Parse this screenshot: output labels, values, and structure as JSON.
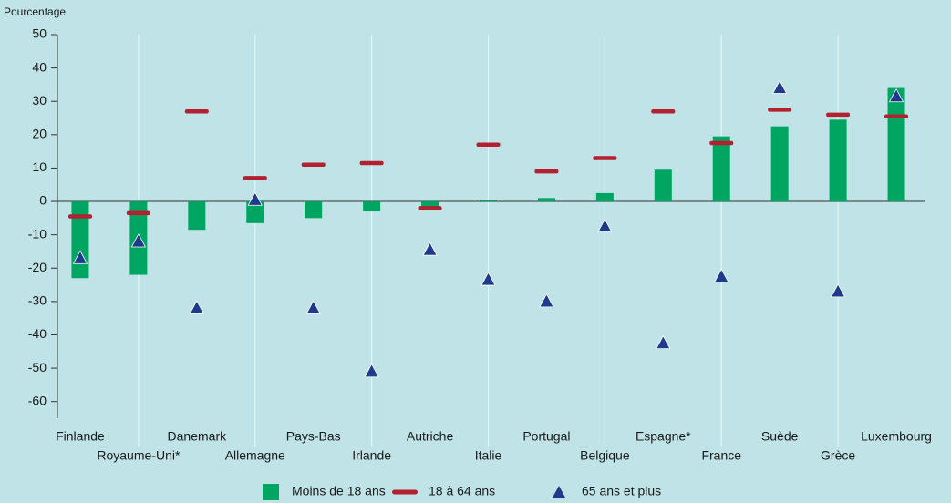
{
  "chart_data": {
    "type": "bar",
    "y_label": "Pourcentage",
    "categories": [
      "Finlande",
      "Royaume-Uni*",
      "Danemark",
      "Allemagne",
      "Pays-Bas",
      "Irlande",
      "Autriche",
      "Italie",
      "Portugal",
      "Belgique",
      "Espagne*",
      "France",
      "Suède",
      "Grèce",
      "Luxembourg"
    ],
    "series": [
      {
        "name": "Moins de 18 ans",
        "color": "#00a562",
        "marker": "bar",
        "values": [
          -23,
          -22,
          -8.5,
          -6.5,
          -5,
          -3,
          -2,
          0.5,
          1,
          2.5,
          9.5,
          19.5,
          22.5,
          24.5,
          34
        ]
      },
      {
        "name": "18 à 64 ans",
        "color": "#b3202f",
        "marker": "dash",
        "values": [
          -4.5,
          -3.5,
          27,
          7,
          11,
          11.5,
          -2,
          17,
          9,
          13,
          27,
          17.5,
          27.5,
          26,
          25.5
        ]
      },
      {
        "name": "65 ans et plus",
        "color": "#1f3a8a",
        "marker": "triangle",
        "values": [
          -17,
          -12,
          -32,
          0.5,
          -32,
          -51,
          -14.5,
          -23.5,
          -30,
          -7.5,
          -42.5,
          -22.5,
          34,
          -27,
          31.5
        ]
      }
    ],
    "ylim": [
      -65,
      50
    ],
    "yticks": [
      50,
      40,
      30,
      20,
      10,
      0,
      -10,
      -20,
      -30,
      -40,
      -50,
      -60
    ]
  }
}
